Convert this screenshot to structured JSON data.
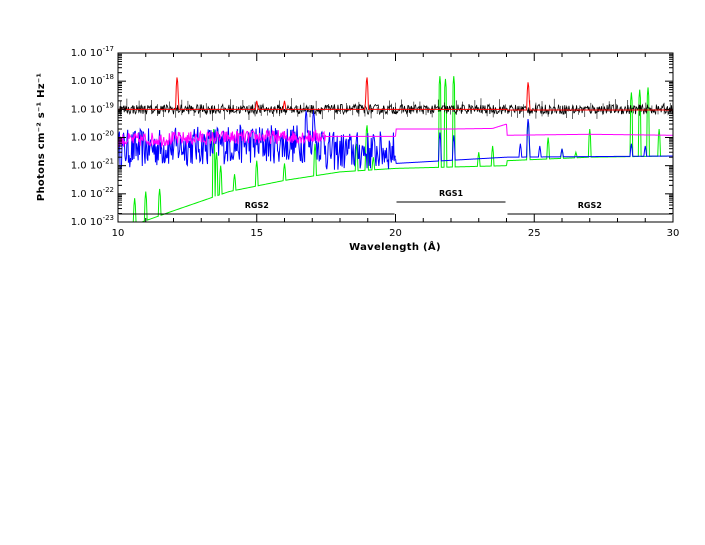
{
  "chart_data": {
    "type": "line",
    "xlabel": "Wavelength (Å)",
    "ylabel": "Photons cm⁻² s⁻¹ Hz⁻¹",
    "xlim": [
      10,
      30
    ],
    "ylim": [
      1e-23,
      1e-17
    ],
    "yscale": "log",
    "x_ticks": [
      "10",
      "15",
      "20",
      "25",
      "30"
    ],
    "y_tick_mantissa": "1.0",
    "y_tick_exponents": [
      "-23",
      "-22",
      "-21",
      "-20",
      "-19",
      "-18",
      "-17"
    ],
    "grid": false,
    "panels": [
      {
        "label": "RGS2",
        "x_range": [
          10,
          20
        ]
      },
      {
        "label": "RGS1",
        "x_range": [
          20,
          24
        ]
      },
      {
        "label": "RGS2",
        "x_range": [
          24,
          30
        ]
      }
    ],
    "series": [
      {
        "color": "#000000",
        "style": "data points with error bars",
        "level": 1e-19
      },
      {
        "color": "#ff0000",
        "style": "total model",
        "level": 1e-19,
        "lines": [
          [
            12.13,
            1.5e-18
          ],
          [
            18.97,
            1.5e-18
          ],
          [
            24.78,
            1e-18
          ],
          [
            16.0,
            2e-19
          ],
          [
            15.0,
            2e-19
          ]
        ]
      },
      {
        "color": "#ff00ff",
        "style": "continuum component",
        "points": [
          [
            10,
            8e-21
          ],
          [
            12,
            9e-21
          ],
          [
            14,
            1e-20
          ],
          [
            16,
            1.05e-20
          ],
          [
            18,
            1.1e-20
          ],
          [
            20,
            1.1e-20
          ],
          [
            20.001,
            2e-20
          ],
          [
            22,
            2e-20
          ],
          [
            23.5,
            2.1e-20
          ],
          [
            24,
            3e-20
          ],
          [
            24.001,
            1.2e-20
          ],
          [
            27,
            1.3e-20
          ],
          [
            30,
            1.2e-20
          ]
        ]
      },
      {
        "color": "#0000ff",
        "style": "line component",
        "continuum": [
          [
            10,
            1e-21
          ],
          [
            14,
            1.5e-21
          ],
          [
            18,
            1.7e-21
          ],
          [
            20,
            1.8e-21
          ],
          [
            20.001,
            1.2e-21
          ],
          [
            24,
            2e-21
          ],
          [
            24.001,
            2e-21
          ],
          [
            30,
            2.2e-21
          ]
        ],
        "lines": [
          [
            16.78,
            1e-19
          ],
          [
            17.05,
            1e-19
          ],
          [
            21.6,
            1.5e-20
          ],
          [
            22.1,
            1.2e-20
          ],
          [
            24.78,
            5e-20
          ],
          [
            24.5,
            6e-21
          ],
          [
            25.2,
            5e-21
          ],
          [
            26.0,
            4e-21
          ],
          [
            28.5,
            6e-21
          ],
          [
            29.0,
            5e-21
          ]
        ]
      },
      {
        "color": "#00ee00",
        "style": "ionized component",
        "continuum": [
          [
            10,
            5e-24
          ],
          [
            12,
            2.5e-23
          ],
          [
            14,
            1.2e-22
          ],
          [
            16,
            3e-22
          ],
          [
            18,
            6e-22
          ],
          [
            20,
            8e-22
          ],
          [
            20.001,
            8e-22
          ],
          [
            24,
            1e-21
          ],
          [
            24.001,
            1.5e-21
          ],
          [
            27,
            2e-21
          ],
          [
            30,
            2.2e-21
          ]
        ],
        "lines": [
          [
            10.6,
            7e-23
          ],
          [
            11.0,
            1.2e-22
          ],
          [
            11.5,
            1.5e-22
          ],
          [
            13.45,
            2e-20
          ],
          [
            13.55,
            3e-21
          ],
          [
            13.7,
            1e-21
          ],
          [
            14.2,
            5e-22
          ],
          [
            15.0,
            1.5e-21
          ],
          [
            16.0,
            1.2e-21
          ],
          [
            17.1,
            6e-21
          ],
          [
            18.6,
            6e-21
          ],
          [
            18.97,
            3e-20
          ],
          [
            19.2,
            2e-21
          ],
          [
            21.6,
            1.5e-18
          ],
          [
            21.8,
            1.2e-18
          ],
          [
            22.1,
            1.5e-18
          ],
          [
            23.0,
            3e-21
          ],
          [
            23.5,
            5e-21
          ],
          [
            24.78,
            4e-20
          ],
          [
            25.5,
            1e-20
          ],
          [
            26.0,
            4e-21
          ],
          [
            26.5,
            3e-21
          ],
          [
            27.0,
            2e-20
          ],
          [
            28.5,
            4e-19
          ],
          [
            28.8,
            5e-19
          ],
          [
            29.1,
            6e-19
          ],
          [
            29.5,
            2e-20
          ]
        ]
      }
    ]
  }
}
